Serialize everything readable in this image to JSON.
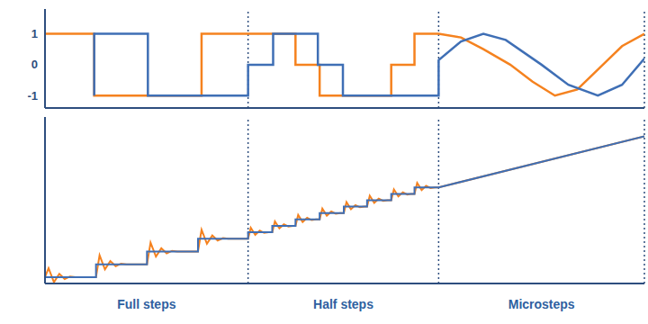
{
  "chart_data": [
    {
      "type": "line",
      "xlim": [
        0,
        670
      ],
      "ylim": [
        -1.4,
        1.8
      ],
      "yticks": [
        -1,
        0,
        1
      ],
      "tick_labels": "y",
      "grid": false,
      "series": [
        {
          "color": "#f5821f",
          "x": [
            0,
            55,
            55,
            175,
            175,
            280,
            280,
            307,
            307,
            387,
            387,
            413,
            413,
            440,
            465,
            490,
            520,
            545,
            570,
            595,
            620,
            645,
            670
          ],
          "values": [
            1,
            1,
            -1,
            -1,
            1,
            1,
            0,
            0,
            -1,
            -1,
            0,
            0,
            1,
            1,
            0.88,
            0.5,
            0,
            -0.55,
            -1,
            -0.8,
            -0.1,
            0.6,
            1
          ]
        },
        {
          "color": "#3f6fb5",
          "x": [
            55,
            55,
            115,
            115,
            227,
            227,
            255,
            255,
            305,
            305,
            333,
            333,
            440,
            440,
            465,
            490,
            515,
            555,
            585,
            618,
            645,
            670
          ],
          "values": [
            -1,
            1,
            1,
            -1,
            -1,
            0,
            0,
            1,
            1,
            0,
            0,
            -1,
            -1,
            0.15,
            0.75,
            1,
            0.8,
            0,
            -0.65,
            -1,
            -0.65,
            0.2
          ]
        }
      ]
    },
    {
      "type": "line",
      "xlim": [
        0,
        670
      ],
      "ylim": [
        -1,
        25
      ],
      "tick_labels": false,
      "grid": false,
      "sections": [
        {
          "label": "Full steps",
          "start": 0,
          "end": 227
        },
        {
          "label": "Half steps",
          "start": 227,
          "end": 440
        },
        {
          "label": "Microsteps",
          "start": 440,
          "end": 670
        }
      ],
      "series": [
        {
          "color": "#f5821f",
          "x": [
            0,
            4,
            10,
            16,
            22,
            28,
            34,
            57,
            61,
            67,
            73,
            79,
            85,
            91,
            114,
            118,
            124,
            130,
            136,
            142,
            148,
            171,
            175,
            181,
            187,
            193,
            199,
            205,
            227,
            230,
            235,
            240,
            245,
            250,
            254,
            257,
            262,
            267,
            272,
            277,
            280,
            283,
            288,
            293,
            298,
            303,
            307,
            310,
            315,
            320,
            325,
            330,
            334,
            337,
            342,
            347,
            352,
            357,
            360,
            363,
            368,
            373,
            378,
            383,
            387,
            390,
            395,
            400,
            405,
            410,
            413,
            416,
            421,
            426,
            431,
            436,
            440,
            670
          ],
          "values": [
            0,
            1.4,
            -0.8,
            0.5,
            -0.3,
            0.1,
            0,
            0,
            3.4,
            1.2,
            2.5,
            1.7,
            2.1,
            2,
            2,
            5.4,
            3.2,
            4.5,
            3.7,
            4.1,
            4,
            4,
            7.4,
            5.2,
            6.5,
            5.7,
            6.1,
            6,
            6,
            7.7,
            6.6,
            7.25,
            6.9,
            7,
            7,
            8.7,
            7.6,
            8.25,
            7.9,
            8,
            8,
            9.7,
            8.6,
            9.25,
            8.9,
            9,
            9,
            10.7,
            9.6,
            10.25,
            9.9,
            10,
            10,
            11.7,
            10.6,
            11.25,
            10.9,
            11,
            11,
            12.7,
            11.6,
            12.25,
            11.9,
            12,
            12,
            13.7,
            12.6,
            13.25,
            12.9,
            13,
            13,
            14.7,
            13.6,
            14.25,
            13.9,
            14,
            14,
            22
          ]
        },
        {
          "color": "#3f6fb5",
          "x": [
            0,
            57,
            57,
            114,
            114,
            171,
            171,
            227,
            227,
            254,
            254,
            280,
            280,
            307,
            307,
            334,
            334,
            360,
            360,
            387,
            387,
            413,
            413,
            440,
            670
          ],
          "values": [
            0,
            0,
            2,
            2,
            4,
            4,
            6,
            6,
            7,
            7,
            8,
            8,
            9,
            9,
            10,
            10,
            11,
            11,
            12,
            12,
            13,
            13,
            14,
            14,
            22
          ]
        }
      ]
    }
  ]
}
